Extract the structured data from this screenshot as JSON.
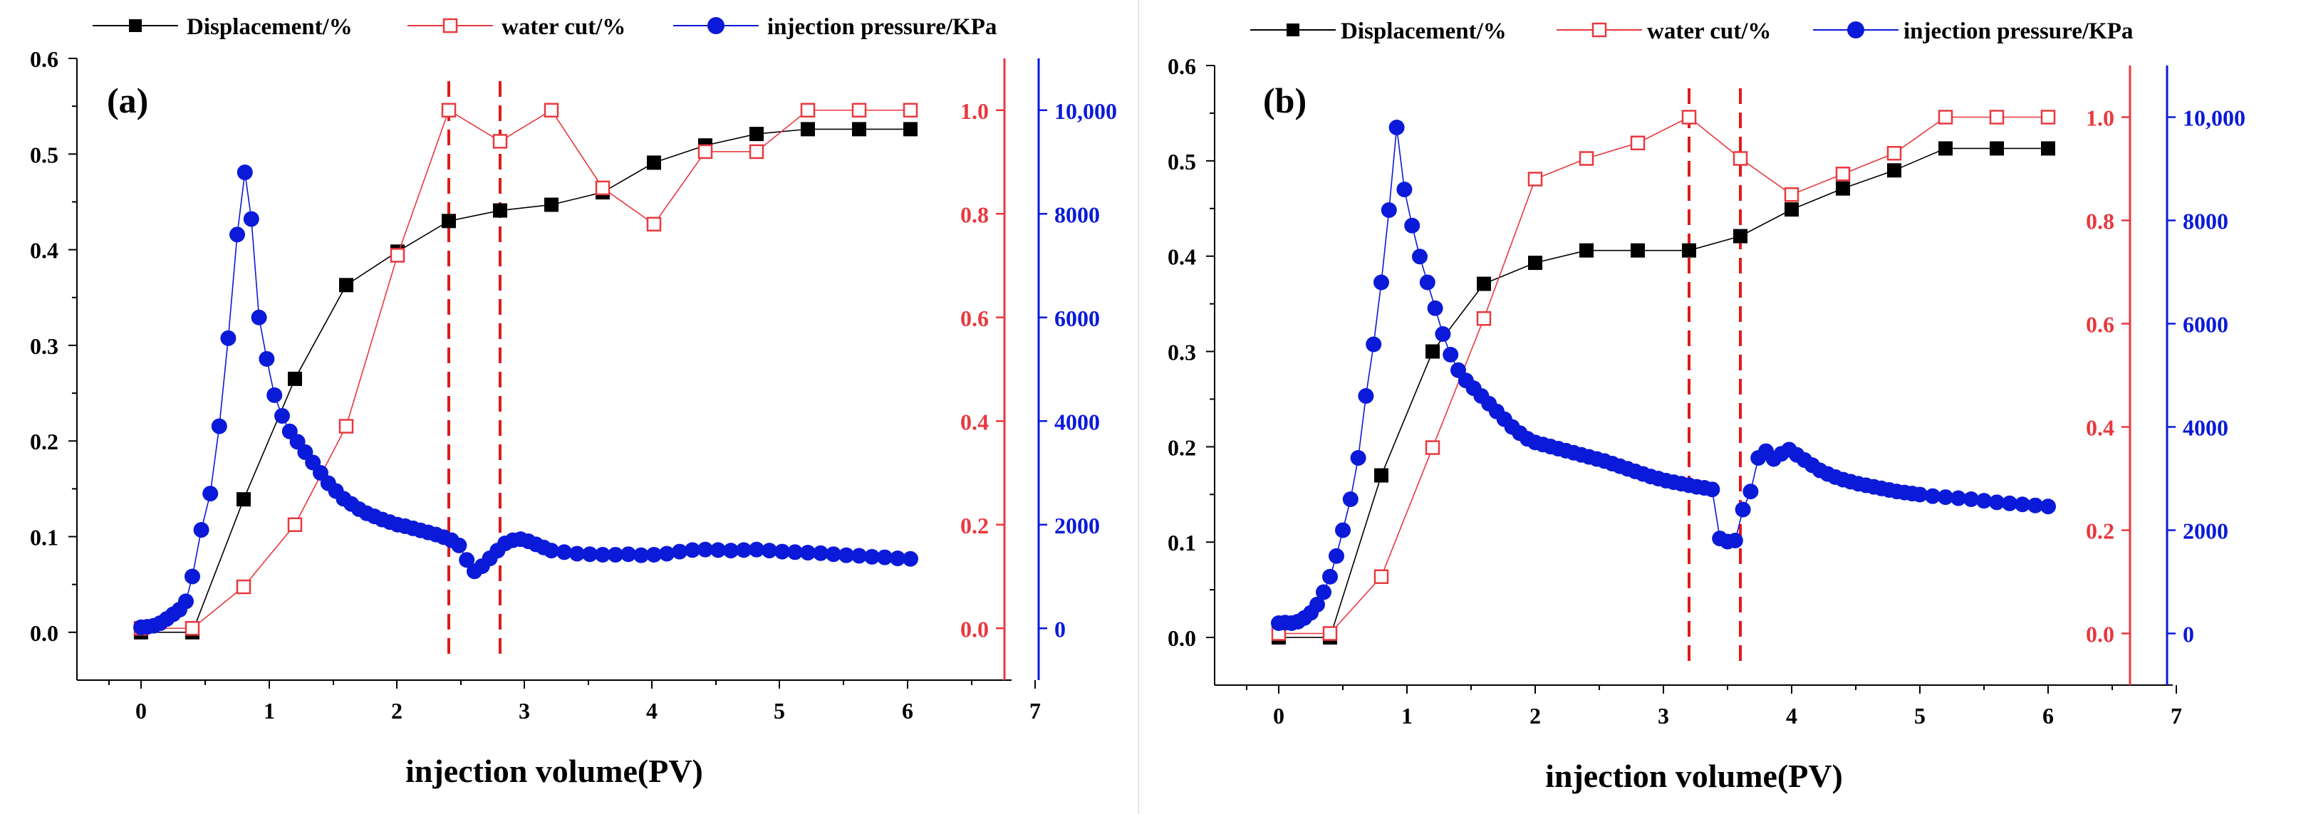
{
  "figure": {
    "divider": true
  },
  "chart_data": [
    {
      "panel_label": "(a)",
      "type": "line",
      "title": "",
      "xlabel": "injection volume(PV)",
      "x_ticks": [
        "0",
        "1",
        "2",
        "3",
        "4",
        "5",
        "6",
        "7"
      ],
      "xlim": [
        -0.5,
        7
      ],
      "y_left": {
        "label": "",
        "lim": [
          -0.05,
          0.6
        ],
        "ticks": [
          "0.0",
          "0.1",
          "0.2",
          "0.3",
          "0.4",
          "0.5",
          "0.6"
        ],
        "color": "#000000"
      },
      "y_right1": {
        "label": "",
        "lim": [
          -0.1,
          1.1
        ],
        "ticks": [
          "0.0",
          "0.2",
          "0.4",
          "0.6",
          "0.8",
          "1.0"
        ],
        "color": "#e8393f"
      },
      "y_right2": {
        "label": "",
        "lim": [
          -1000,
          11000
        ],
        "ticks": [
          "0",
          "2000",
          "4000",
          "6000",
          "8000",
          "10,000"
        ],
        "color": "#0a1ad8"
      },
      "markers": {
        "vlines": [
          2.4,
          2.8
        ],
        "vline_color": "#e01a1a"
      },
      "series": [
        {
          "name": "Displacement/%",
          "axis": "left",
          "color": "#000000",
          "marker": "filled-square",
          "x": [
            0,
            0.4,
            0.8,
            1.2,
            1.6,
            2.0,
            2.4,
            2.8,
            3.2,
            3.6,
            4.0,
            4.4,
            4.8,
            5.2,
            5.6,
            6.0
          ],
          "values": [
            0.0,
            0.0,
            0.139,
            0.265,
            0.363,
            0.398,
            0.43,
            0.441,
            0.447,
            0.46,
            0.491,
            0.509,
            0.521,
            0.526,
            0.526,
            0.526
          ]
        },
        {
          "name": "water cut/%",
          "axis": "right1",
          "color": "#e8393f",
          "marker": "open-square",
          "x": [
            0,
            0.4,
            0.8,
            1.2,
            1.6,
            2.0,
            2.4,
            2.8,
            3.2,
            3.6,
            4.0,
            4.4,
            4.8,
            5.2,
            5.6,
            6.0
          ],
          "values": [
            0.0,
            0.0,
            0.08,
            0.2,
            0.39,
            0.72,
            1.0,
            0.94,
            1.0,
            0.85,
            0.78,
            0.92,
            0.92,
            1.0,
            1.0,
            1.0
          ]
        },
        {
          "name": "injection pressure/KPa",
          "axis": "right2",
          "color": "#0a1ad8",
          "marker": "filled-circle",
          "x": [
            0,
            0.05,
            0.1,
            0.15,
            0.2,
            0.25,
            0.3,
            0.35,
            0.4,
            0.47,
            0.54,
            0.61,
            0.68,
            0.75,
            0.81,
            0.86,
            0.92,
            0.98,
            1.04,
            1.1,
            1.16,
            1.22,
            1.28,
            1.34,
            1.4,
            1.46,
            1.52,
            1.58,
            1.64,
            1.7,
            1.76,
            1.82,
            1.88,
            1.94,
            2.0,
            2.06,
            2.12,
            2.18,
            2.24,
            2.3,
            2.36,
            2.42,
            2.48,
            2.54,
            2.6,
            2.66,
            2.72,
            2.78,
            2.84,
            2.9,
            2.96,
            3.02,
            3.08,
            3.14,
            3.2,
            3.3,
            3.4,
            3.5,
            3.6,
            3.7,
            3.8,
            3.9,
            4.0,
            4.1,
            4.2,
            4.3,
            4.4,
            4.5,
            4.6,
            4.7,
            4.8,
            4.9,
            5.0,
            5.1,
            5.2,
            5.3,
            5.4,
            5.5,
            5.6,
            5.7,
            5.8,
            5.9,
            6.0
          ],
          "values": [
            20,
            30,
            50,
            100,
            180,
            270,
            360,
            520,
            1000,
            1900,
            2600,
            3900,
            5600,
            7600,
            8800,
            7900,
            6000,
            5200,
            4500,
            4100,
            3800,
            3600,
            3400,
            3200,
            3000,
            2800,
            2650,
            2500,
            2400,
            2300,
            2220,
            2160,
            2100,
            2050,
            2000,
            1970,
            1930,
            1890,
            1850,
            1810,
            1760,
            1700,
            1600,
            1320,
            1100,
            1200,
            1350,
            1500,
            1640,
            1700,
            1720,
            1680,
            1620,
            1560,
            1500,
            1470,
            1440,
            1430,
            1420,
            1420,
            1430,
            1410,
            1420,
            1440,
            1480,
            1510,
            1520,
            1510,
            1500,
            1510,
            1520,
            1500,
            1480,
            1470,
            1460,
            1450,
            1430,
            1410,
            1400,
            1380,
            1370,
            1350,
            1340
          ]
        }
      ]
    },
    {
      "panel_label": "(b)",
      "type": "line",
      "title": "",
      "xlabel": "injection volume(PV)",
      "x_ticks": [
        "0",
        "1",
        "2",
        "3",
        "4",
        "5",
        "6",
        "7"
      ],
      "xlim": [
        -0.5,
        7
      ],
      "y_left": {
        "label": "",
        "lim": [
          -0.05,
          0.6
        ],
        "ticks": [
          "0.0",
          "0.1",
          "0.2",
          "0.3",
          "0.4",
          "0.5",
          "0.6"
        ],
        "color": "#000000"
      },
      "y_right1": {
        "label": "",
        "lim": [
          -0.1,
          1.1
        ],
        "ticks": [
          "0.0",
          "0.2",
          "0.4",
          "0.6",
          "0.8",
          "1.0"
        ],
        "color": "#e8393f"
      },
      "y_right2": {
        "label": "",
        "lim": [
          -1000,
          11000
        ],
        "ticks": [
          "0",
          "2000",
          "4000",
          "6000",
          "8000",
          "10,000"
        ],
        "color": "#0a1ad8"
      },
      "markers": {
        "vlines": [
          3.2,
          3.6
        ],
        "vline_color": "#e01a1a"
      },
      "series": [
        {
          "name": "Displacement/%",
          "axis": "left",
          "color": "#000000",
          "marker": "filled-square",
          "x": [
            0,
            0.4,
            0.8,
            1.2,
            1.6,
            2.0,
            2.4,
            2.8,
            3.2,
            3.6,
            4.0,
            4.4,
            4.8,
            5.2,
            5.6,
            6.0
          ],
          "values": [
            0.0,
            0.0,
            0.17,
            0.3,
            0.371,
            0.393,
            0.406,
            0.406,
            0.406,
            0.421,
            0.449,
            0.471,
            0.49,
            0.513,
            0.513,
            0.513
          ]
        },
        {
          "name": "water cut/%",
          "axis": "right1",
          "color": "#e8393f",
          "marker": "open-square",
          "x": [
            0,
            0.4,
            0.8,
            1.2,
            1.6,
            2.0,
            2.4,
            2.8,
            3.2,
            3.6,
            4.0,
            4.4,
            4.8,
            5.2,
            5.6,
            6.0
          ],
          "values": [
            0.0,
            0.0,
            0.11,
            0.36,
            0.61,
            0.88,
            0.92,
            0.95,
            1.0,
            0.92,
            0.85,
            0.89,
            0.93,
            1.0,
            1.0,
            1.0
          ]
        },
        {
          "name": "injection pressure/KPa",
          "axis": "right2",
          "color": "#0a1ad8",
          "marker": "filled-circle",
          "x": [
            0,
            0.05,
            0.1,
            0.15,
            0.2,
            0.25,
            0.3,
            0.35,
            0.4,
            0.45,
            0.5,
            0.56,
            0.62,
            0.68,
            0.74,
            0.8,
            0.86,
            0.92,
            0.98,
            1.04,
            1.1,
            1.16,
            1.22,
            1.28,
            1.34,
            1.4,
            1.46,
            1.52,
            1.58,
            1.64,
            1.7,
            1.76,
            1.82,
            1.88,
            1.94,
            2.0,
            2.06,
            2.12,
            2.18,
            2.24,
            2.3,
            2.36,
            2.42,
            2.48,
            2.54,
            2.6,
            2.66,
            2.72,
            2.78,
            2.84,
            2.9,
            2.96,
            3.02,
            3.08,
            3.14,
            3.2,
            3.26,
            3.32,
            3.38,
            3.44,
            3.5,
            3.56,
            3.62,
            3.68,
            3.74,
            3.8,
            3.86,
            3.92,
            3.98,
            4.04,
            4.1,
            4.16,
            4.22,
            4.28,
            4.34,
            4.4,
            4.46,
            4.52,
            4.58,
            4.64,
            4.7,
            4.76,
            4.82,
            4.88,
            4.94,
            5.0,
            5.1,
            5.2,
            5.3,
            5.4,
            5.5,
            5.6,
            5.7,
            5.8,
            5.9,
            6.0
          ],
          "values": [
            200,
            210,
            200,
            230,
            300,
            400,
            560,
            800,
            1100,
            1500,
            2000,
            2600,
            3400,
            4600,
            5600,
            6800,
            8200,
            9800,
            8600,
            7900,
            7300,
            6800,
            6300,
            5800,
            5400,
            5100,
            4900,
            4750,
            4600,
            4450,
            4300,
            4150,
            4000,
            3880,
            3770,
            3700,
            3660,
            3620,
            3580,
            3540,
            3500,
            3460,
            3420,
            3380,
            3340,
            3290,
            3240,
            3190,
            3140,
            3090,
            3040,
            3000,
            2960,
            2930,
            2900,
            2870,
            2840,
            2820,
            2790,
            1840,
            1780,
            1800,
            2400,
            2750,
            3400,
            3530,
            3380,
            3480,
            3560,
            3460,
            3360,
            3260,
            3160,
            3090,
            3030,
            2980,
            2940,
            2900,
            2870,
            2840,
            2810,
            2780,
            2750,
            2730,
            2710,
            2690,
            2660,
            2640,
            2620,
            2600,
            2570,
            2540,
            2520,
            2500,
            2480,
            2460
          ]
        }
      ]
    }
  ]
}
